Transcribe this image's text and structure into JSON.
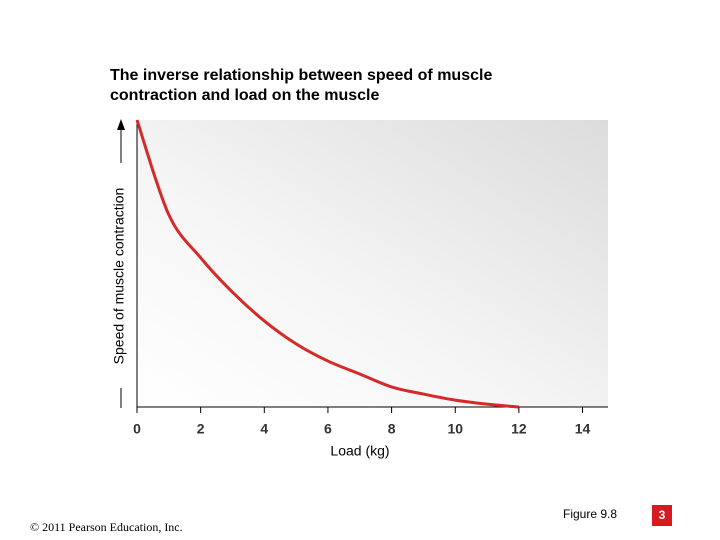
{
  "chart_data": {
    "type": "line",
    "title": "The inverse relationship between speed of muscle contraction and load on the muscle",
    "x_label": "Load (kg)",
    "y_label": "Speed of muscle contraction",
    "x": [
      0,
      1,
      2,
      3,
      4,
      5,
      6,
      7,
      8,
      9,
      10,
      11,
      12
    ],
    "values": [
      100,
      67,
      52,
      40,
      30,
      22,
      16,
      11.5,
      7,
      4.5,
      2.4,
      1,
      0
    ],
    "color": "#d42a2a",
    "xlim": [
      0,
      14.8
    ],
    "xticks": [
      0,
      2,
      4,
      6,
      8,
      10,
      12,
      14
    ],
    "ylim": [
      0,
      100
    ]
  },
  "footer": {
    "figure": "Figure 9.8",
    "page": "3",
    "copyright": "© 2011 Pearson Education, Inc."
  }
}
